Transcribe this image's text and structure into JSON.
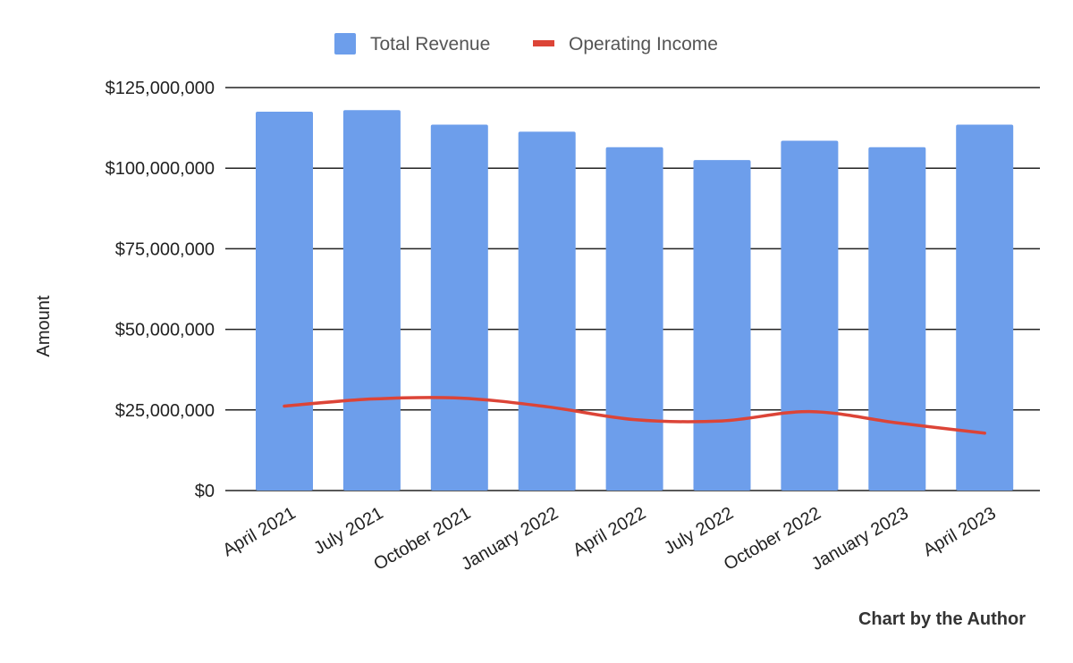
{
  "chart_data": {
    "type": "bar",
    "categories": [
      "April 2021",
      "July 2021",
      "October 2021",
      "January 2022",
      "April 2022",
      "July 2022",
      "October 2022",
      "January 2023",
      "April 2023"
    ],
    "series": [
      {
        "name": "Total Revenue",
        "kind": "bar",
        "color": "#6d9eeb",
        "values": [
          117500000,
          118000000,
          113500000,
          111300000,
          106500000,
          102500000,
          108500000,
          106500000,
          113500000
        ]
      },
      {
        "name": "Operating Income",
        "kind": "line",
        "color": "#dc4437",
        "values": [
          26200000,
          28400000,
          28700000,
          26000000,
          22000000,
          21600000,
          24500000,
          21000000,
          17800000
        ]
      }
    ],
    "ylabel": "Amount",
    "xlabel": "",
    "ylim": [
      0,
      125000000
    ],
    "yticks": [
      "$0",
      "$25,000,000",
      "$50,000,000",
      "$75,000,000",
      "$100,000,000",
      "$125,000,000"
    ],
    "ytick_values": [
      0,
      25000000,
      50000000,
      75000000,
      100000000,
      125000000
    ],
    "grid": true,
    "legend_position": "top-center",
    "gridline_color": "#222222"
  },
  "credit": "Chart by the Author"
}
